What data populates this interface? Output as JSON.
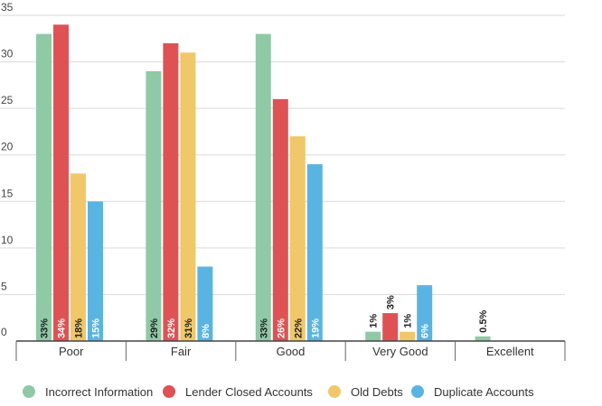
{
  "chart_data": {
    "type": "bar",
    "categories": [
      "Poor",
      "Fair",
      "Good",
      "Very Good",
      "Excellent"
    ],
    "series": [
      {
        "name": "Incorrect Information",
        "color": "#8fc9a6",
        "values": [
          33,
          29,
          33,
          1,
          0.5
        ],
        "labels": [
          "33%",
          "29%",
          "33%",
          "1%",
          "0.5%"
        ]
      },
      {
        "name": "Lender Closed Accounts",
        "color": "#de5254",
        "values": [
          34,
          32,
          26,
          3,
          null
        ],
        "labels": [
          "34%",
          "32%",
          "26%",
          "3%",
          ""
        ]
      },
      {
        "name": "Old Debts",
        "color": "#f0c86a",
        "values": [
          18,
          31,
          22,
          1,
          null
        ],
        "labels": [
          "18%",
          "31%",
          "22%",
          "1%",
          ""
        ]
      },
      {
        "name": "Duplicate Accounts",
        "color": "#5ab4e2",
        "values": [
          15,
          8,
          19,
          6,
          null
        ],
        "labels": [
          "15%",
          "8%",
          "19%",
          "6%",
          ""
        ]
      }
    ],
    "yticks": [
      0,
      5,
      10,
      15,
      20,
      25,
      30,
      35
    ],
    "ylim": [
      0,
      35
    ],
    "grid": true,
    "legend": "bottom",
    "title": "",
    "xlabel": "",
    "ylabel": ""
  }
}
